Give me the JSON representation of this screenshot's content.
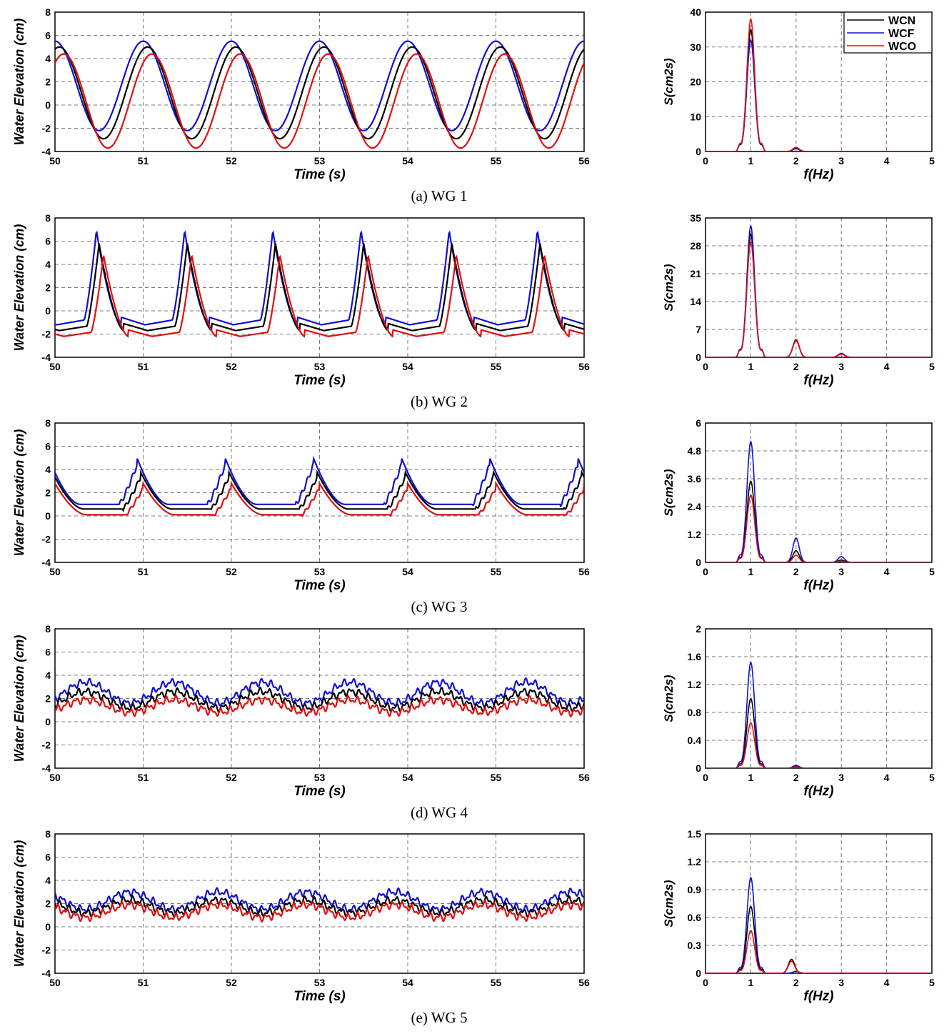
{
  "legend": {
    "placement": "top-right of first spectrum panel",
    "entries": [
      {
        "label": "WCN",
        "color": "#000000"
      },
      {
        "label": "WCF",
        "color": "#1010d0"
      },
      {
        "label": "WCO",
        "color": "#e01010"
      }
    ]
  },
  "colors": {
    "WCN": "#000000",
    "WCF": "#1010d0",
    "WCO": "#e01010",
    "grid": "#7a7a7a"
  },
  "panels": [
    {
      "caption": "(a)  WG  1"
    },
    {
      "caption": "(b)  WG  2"
    },
    {
      "caption": "(c)  WG  3"
    },
    {
      "caption": "(d)  WG  4"
    },
    {
      "caption": "(e)  WG  5"
    }
  ],
  "chart_data": [
    {
      "type": "line",
      "panel": "a",
      "title": "",
      "xlabel": "Time (s)",
      "ylabel": "Water Elevation (cm)",
      "xlim": [
        50,
        56
      ],
      "ylim": [
        -4,
        8
      ],
      "xticks": [
        "50",
        "51",
        "52",
        "53",
        "54",
        "55",
        "56"
      ],
      "yticks": [
        "-4",
        "-2",
        "0",
        "2",
        "4",
        "6",
        "8"
      ],
      "wave": {
        "period_s": 1.0,
        "shape": "cosine"
      },
      "series": [
        {
          "name": "WCN",
          "crest_times": [
            51.05,
            52.05,
            53.05,
            54.05,
            55.05
          ],
          "crest_cm": 5.0,
          "trough_cm": -2.9
        },
        {
          "name": "WCF",
          "crest_times": [
            51.0,
            52.0,
            53.0,
            54.0,
            55.0
          ],
          "crest_cm": 5.5,
          "trough_cm": -2.2
        },
        {
          "name": "WCO",
          "crest_times": [
            51.1,
            52.1,
            53.1,
            54.1,
            55.1
          ],
          "crest_cm": 4.4,
          "trough_cm": -3.7
        }
      ]
    },
    {
      "type": "line",
      "panel": "a",
      "title": "",
      "xlabel": "f(Hz)",
      "ylabel": "S(cm2s)",
      "xlim": [
        0,
        5
      ],
      "ylim": [
        0,
        40
      ],
      "xticks": [
        "0",
        "1",
        "2",
        "3",
        "4",
        "5"
      ],
      "yticks": [
        "0",
        "10",
        "20",
        "30",
        "40"
      ],
      "series": [
        {
          "name": "WCN",
          "peaks": [
            [
              1.0,
              35.0
            ],
            [
              2.0,
              1.0
            ]
          ]
        },
        {
          "name": "WCF",
          "peaks": [
            [
              1.0,
              32.0
            ],
            [
              2.0,
              0.8
            ]
          ]
        },
        {
          "name": "WCO",
          "peaks": [
            [
              1.0,
              38.0
            ],
            [
              2.0,
              1.2
            ]
          ]
        }
      ]
    },
    {
      "type": "line",
      "panel": "b",
      "title": "",
      "xlabel": "Time (s)",
      "ylabel": "Water Elevation (cm)",
      "xlim": [
        50,
        56
      ],
      "ylim": [
        -4,
        8
      ],
      "xticks": [
        "50",
        "51",
        "52",
        "53",
        "54",
        "55",
        "56"
      ],
      "yticks": [
        "-4",
        "-2",
        "0",
        "2",
        "4",
        "6",
        "8"
      ],
      "wave": {
        "period_s": 1.0,
        "shape": "peaked"
      },
      "series": [
        {
          "name": "WCN",
          "crest_times": [
            50.5,
            51.5,
            52.5,
            53.5,
            54.5,
            55.5
          ],
          "crest_cm": 5.8,
          "trough_cm": -1.7
        },
        {
          "name": "WCF",
          "crest_times": [
            50.47,
            51.47,
            52.47,
            53.47,
            54.47,
            55.47
          ],
          "crest_cm": 6.9,
          "trough_cm": -1.2
        },
        {
          "name": "WCO",
          "crest_times": [
            50.55,
            51.55,
            52.55,
            53.55,
            54.55,
            55.55
          ],
          "crest_cm": 4.8,
          "trough_cm": -2.2
        }
      ]
    },
    {
      "type": "line",
      "panel": "b",
      "title": "",
      "xlabel": "f(Hz)",
      "ylabel": "S(cm2s)",
      "xlim": [
        0,
        5
      ],
      "ylim": [
        0,
        35
      ],
      "xticks": [
        "0",
        "1",
        "2",
        "3",
        "4",
        "5"
      ],
      "yticks": [
        "0",
        "7",
        "14",
        "21",
        "28",
        "35"
      ],
      "series": [
        {
          "name": "WCN",
          "peaks": [
            [
              1.0,
              31.0
            ],
            [
              2.0,
              4.5
            ],
            [
              3.0,
              0.9
            ]
          ]
        },
        {
          "name": "WCF",
          "peaks": [
            [
              1.0,
              33.0
            ],
            [
              2.0,
              4.2
            ],
            [
              3.0,
              1.0
            ]
          ]
        },
        {
          "name": "WCO",
          "peaks": [
            [
              1.0,
              29.0
            ],
            [
              2.0,
              4.4
            ],
            [
              3.0,
              0.8
            ]
          ]
        }
      ]
    },
    {
      "type": "line",
      "panel": "c",
      "title": "",
      "xlabel": "Time (s)",
      "ylabel": "Water Elevation (cm)",
      "xlim": [
        50,
        56
      ],
      "ylim": [
        -4,
        8
      ],
      "xticks": [
        "50",
        "51",
        "52",
        "53",
        "54",
        "55",
        "56"
      ],
      "yticks": [
        "-4",
        "-2",
        "0",
        "2",
        "4",
        "6",
        "8"
      ],
      "wave": {
        "period_s": 1.0,
        "shape": "sawtooth"
      },
      "series": [
        {
          "name": "WCN",
          "crest_times": [
            50.97,
            51.97,
            52.97,
            53.97,
            54.97
          ],
          "crest_cm": 3.8,
          "trough_cm": 0.6
        },
        {
          "name": "WCF",
          "crest_times": [
            50.93,
            51.93,
            52.93,
            53.93,
            54.93
          ],
          "crest_cm": 5.0,
          "trough_cm": 1.0
        },
        {
          "name": "WCO",
          "crest_times": [
            51.0,
            52.0,
            53.0,
            54.0,
            55.0
          ],
          "crest_cm": 2.8,
          "trough_cm": 0.1
        }
      ]
    },
    {
      "type": "line",
      "panel": "c",
      "title": "",
      "xlabel": "f(Hz)",
      "ylabel": "S(cm2s)",
      "xlim": [
        0,
        5
      ],
      "ylim": [
        0,
        6
      ],
      "xticks": [
        "0",
        "1",
        "2",
        "3",
        "4",
        "5"
      ],
      "yticks": [
        "0",
        "1.2",
        "2.4",
        "3.6",
        "4.8",
        "6"
      ],
      "series": [
        {
          "name": "WCN",
          "peaks": [
            [
              1.0,
              3.5
            ],
            [
              2.0,
              0.5
            ],
            [
              3.0,
              0.1
            ]
          ]
        },
        {
          "name": "WCF",
          "peaks": [
            [
              1.0,
              5.2
            ],
            [
              2.0,
              1.05
            ],
            [
              3.0,
              0.25
            ]
          ]
        },
        {
          "name": "WCO",
          "peaks": [
            [
              1.0,
              2.9
            ],
            [
              2.0,
              0.3
            ],
            [
              3.0,
              0.05
            ]
          ]
        }
      ]
    },
    {
      "type": "line",
      "panel": "d",
      "title": "",
      "xlabel": "Time (s)",
      "ylabel": "Water Elevation (cm)",
      "xlim": [
        50,
        56
      ],
      "ylim": [
        -4,
        8
      ],
      "xticks": [
        "50",
        "51",
        "52",
        "53",
        "54",
        "55",
        "56"
      ],
      "yticks": [
        "-4",
        "-2",
        "0",
        "2",
        "4",
        "6",
        "8"
      ],
      "wave": {
        "period_s": 1.0,
        "shape": "noisy"
      },
      "series": [
        {
          "name": "WCN",
          "crest_times": [
            50.35,
            51.35,
            52.35,
            53.35,
            54.35,
            55.35
          ],
          "crest_cm": 2.6,
          "trough_cm": 1.2
        },
        {
          "name": "WCF",
          "crest_times": [
            50.35,
            51.35,
            52.35,
            53.35,
            54.35,
            55.35
          ],
          "crest_cm": 3.4,
          "trough_cm": 1.6
        },
        {
          "name": "WCO",
          "crest_times": [
            50.35,
            51.35,
            52.35,
            53.35,
            54.35,
            55.35
          ],
          "crest_cm": 1.9,
          "trough_cm": 0.8
        }
      ]
    },
    {
      "type": "line",
      "panel": "d",
      "title": "",
      "xlabel": "f(Hz)",
      "ylabel": "S(cm2s)",
      "xlim": [
        0,
        5
      ],
      "ylim": [
        0,
        2
      ],
      "xticks": [
        "0",
        "1",
        "2",
        "3",
        "4",
        "5"
      ],
      "yticks": [
        "0",
        "0.4",
        "0.8",
        "1.2",
        "1.6",
        "2"
      ],
      "series": [
        {
          "name": "WCN",
          "peaks": [
            [
              1.0,
              1.0
            ],
            [
              2.0,
              0.03
            ]
          ]
        },
        {
          "name": "WCF",
          "peaks": [
            [
              1.0,
              1.52
            ],
            [
              2.0,
              0.04
            ]
          ]
        },
        {
          "name": "WCO",
          "peaks": [
            [
              1.0,
              0.65
            ],
            [
              2.0,
              0.02
            ]
          ]
        }
      ]
    },
    {
      "type": "line",
      "panel": "e",
      "title": "",
      "xlabel": "Time (s)",
      "ylabel": "Water Elevation (cm)",
      "xlim": [
        50,
        56
      ],
      "ylim": [
        -4,
        8
      ],
      "xticks": [
        "50",
        "51",
        "52",
        "53",
        "54",
        "55",
        "56"
      ],
      "yticks": [
        "-4",
        "-2",
        "0",
        "2",
        "4",
        "6",
        "8"
      ],
      "wave": {
        "period_s": 1.0,
        "shape": "noisy"
      },
      "series": [
        {
          "name": "WCN",
          "crest_times": [
            50.85,
            51.85,
            52.85,
            53.85,
            54.85,
            55.85
          ],
          "crest_cm": 2.3,
          "trough_cm": 1.2
        },
        {
          "name": "WCF",
          "crest_times": [
            50.85,
            51.85,
            52.85,
            53.85,
            54.85,
            55.85
          ],
          "crest_cm": 3.0,
          "trough_cm": 1.5
        },
        {
          "name": "WCO",
          "crest_times": [
            50.85,
            51.85,
            52.85,
            53.85,
            54.85,
            55.85
          ],
          "crest_cm": 1.9,
          "trough_cm": 0.8
        }
      ]
    },
    {
      "type": "line",
      "panel": "e",
      "title": "",
      "xlabel": "f(Hz)",
      "ylabel": "S(cm2s)",
      "xlim": [
        0,
        5
      ],
      "ylim": [
        0,
        1.5
      ],
      "xticks": [
        "0",
        "1",
        "2",
        "3",
        "4",
        "5"
      ],
      "yticks": [
        "0",
        "0.3",
        "0.6",
        "0.9",
        "1.2",
        "1.5"
      ],
      "series": [
        {
          "name": "WCN",
          "peaks": [
            [
              1.0,
              0.72
            ],
            [
              1.9,
              0.15
            ]
          ]
        },
        {
          "name": "WCF",
          "peaks": [
            [
              1.0,
              1.03
            ],
            [
              2.0,
              0.02
            ]
          ]
        },
        {
          "name": "WCO",
          "peaks": [
            [
              1.0,
              0.46
            ],
            [
              1.9,
              0.13
            ]
          ]
        }
      ]
    }
  ]
}
